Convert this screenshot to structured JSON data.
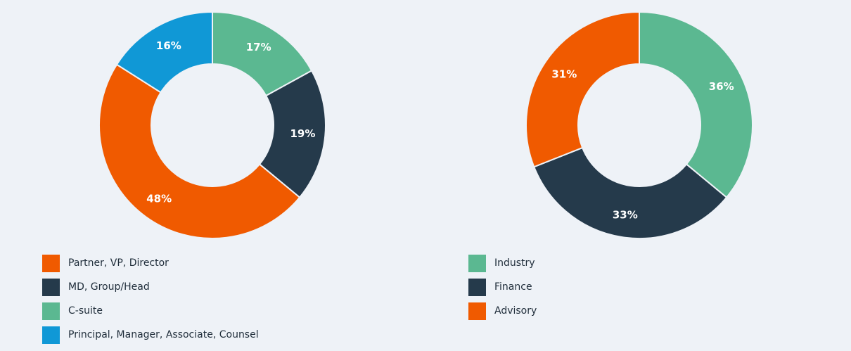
{
  "chart_data": [
    {
      "type": "pie",
      "categories": [
        "C-suite",
        "MD, Group/Head",
        "Partner, VP, Director",
        "Principal, Manager, Associate, Counsel"
      ],
      "values": [
        17,
        19,
        48,
        16
      ],
      "labels": [
        "17%",
        "19%",
        "48%",
        "16%"
      ],
      "colors": [
        "#5bb891",
        "#253a4b",
        "#f05a00",
        "#1098d6"
      ],
      "legend": {
        "placement": "bottom-left",
        "items": [
          {
            "label": "Partner, VP, Director",
            "color": "#f05a00"
          },
          {
            "label": "MD, Group/Head",
            "color": "#253a4b"
          },
          {
            "label": "C-suite",
            "color": "#5bb891"
          },
          {
            "label": "Principal, Manager, Associate, Counsel",
            "color": "#1098d6"
          }
        ]
      }
    },
    {
      "type": "pie",
      "categories": [
        "Industry",
        "Finance",
        "Advisory"
      ],
      "values": [
        36,
        33,
        31
      ],
      "labels": [
        "36%",
        "33%",
        "31%"
      ],
      "colors": [
        "#5bb891",
        "#253a4b",
        "#f05a00"
      ],
      "legend": {
        "placement": "bottom-left",
        "items": [
          {
            "label": "Industry",
            "color": "#5bb891"
          },
          {
            "label": "Finance",
            "color": "#253a4b"
          },
          {
            "label": "Advisory",
            "color": "#f05a00"
          }
        ]
      }
    }
  ]
}
